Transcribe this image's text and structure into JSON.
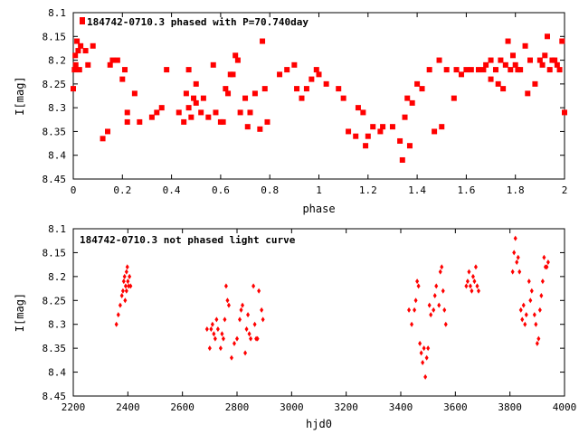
{
  "chart_data": [
    {
      "type": "scatter",
      "legend": "184742-0710.3 phased with P=70.740day",
      "xlabel": "phase",
      "ylabel": "I[mag]",
      "xlim": [
        0,
        2
      ],
      "ylim": [
        8.45,
        8.1
      ],
      "y_inverted": true,
      "xticks": [
        "0",
        "0.2",
        "0.4",
        "0.6",
        "0.8",
        "1",
        "1.2",
        "1.4",
        "1.6",
        "1.8",
        "2"
      ],
      "yticks": [
        "8.1",
        "8.15",
        "8.2",
        "8.25",
        "8.3",
        "8.35",
        "8.4",
        "8.45"
      ],
      "marker_color": "#ff0000",
      "series": [
        {
          "points": [
            [
              0.0,
              8.26
            ],
            [
              0.005,
              8.22
            ],
            [
              0.008,
              8.19
            ],
            [
              0.01,
              8.21
            ],
            [
              0.015,
              8.16
            ],
            [
              0.02,
              8.18
            ],
            [
              0.025,
              8.22
            ],
            [
              0.03,
              8.17
            ],
            [
              0.05,
              8.18
            ],
            [
              0.06,
              8.21
            ],
            [
              0.08,
              8.17
            ],
            [
              0.12,
              8.365
            ],
            [
              0.14,
              8.35
            ],
            [
              0.15,
              8.21
            ],
            [
              0.16,
              8.2
            ],
            [
              0.18,
              8.2
            ],
            [
              0.2,
              8.24
            ],
            [
              0.21,
              8.22
            ],
            [
              0.22,
              8.31
            ],
            [
              0.22,
              8.33
            ],
            [
              0.25,
              8.27
            ],
            [
              0.27,
              8.33
            ],
            [
              0.32,
              8.32
            ],
            [
              0.34,
              8.31
            ],
            [
              0.36,
              8.3
            ],
            [
              0.38,
              8.22
            ],
            [
              0.43,
              8.31
            ],
            [
              0.45,
              8.33
            ],
            [
              0.46,
              8.27
            ],
            [
              0.47,
              8.3
            ],
            [
              0.47,
              8.22
            ],
            [
              0.48,
              8.32
            ],
            [
              0.49,
              8.28
            ],
            [
              0.5,
              8.25
            ],
            [
              0.5,
              8.29
            ],
            [
              0.52,
              8.31
            ],
            [
              0.53,
              8.28
            ],
            [
              0.55,
              8.32
            ],
            [
              0.57,
              8.21
            ],
            [
              0.58,
              8.31
            ],
            [
              0.6,
              8.33
            ],
            [
              0.61,
              8.33
            ],
            [
              0.62,
              8.26
            ],
            [
              0.63,
              8.27
            ],
            [
              0.64,
              8.23
            ],
            [
              0.65,
              8.23
            ],
            [
              0.66,
              8.19
            ],
            [
              0.67,
              8.2
            ],
            [
              0.68,
              8.31
            ],
            [
              0.7,
              8.28
            ],
            [
              0.71,
              8.34
            ],
            [
              0.72,
              8.31
            ],
            [
              0.74,
              8.27
            ],
            [
              0.76,
              8.345
            ],
            [
              0.77,
              8.16
            ],
            [
              0.78,
              8.26
            ],
            [
              0.79,
              8.33
            ],
            [
              0.84,
              8.23
            ],
            [
              0.87,
              8.22
            ],
            [
              0.9,
              8.21
            ],
            [
              0.91,
              8.26
            ],
            [
              0.93,
              8.28
            ],
            [
              0.95,
              8.26
            ],
            [
              0.97,
              8.24
            ],
            [
              0.99,
              8.22
            ],
            [
              1.0,
              8.23
            ],
            [
              1.03,
              8.25
            ],
            [
              1.08,
              8.26
            ],
            [
              1.1,
              8.28
            ],
            [
              1.12,
              8.35
            ],
            [
              1.15,
              8.36
            ],
            [
              1.16,
              8.3
            ],
            [
              1.18,
              8.31
            ],
            [
              1.19,
              8.38
            ],
            [
              1.2,
              8.36
            ],
            [
              1.22,
              8.34
            ],
            [
              1.25,
              8.35
            ],
            [
              1.26,
              8.34
            ],
            [
              1.3,
              8.34
            ],
            [
              1.33,
              8.37
            ],
            [
              1.34,
              8.41
            ],
            [
              1.35,
              8.32
            ],
            [
              1.36,
              8.28
            ],
            [
              1.37,
              8.38
            ],
            [
              1.38,
              8.29
            ],
            [
              1.4,
              8.25
            ],
            [
              1.42,
              8.26
            ],
            [
              1.45,
              8.22
            ],
            [
              1.47,
              8.35
            ],
            [
              1.49,
              8.2
            ],
            [
              1.5,
              8.34
            ],
            [
              1.52,
              8.22
            ],
            [
              1.55,
              8.28
            ],
            [
              1.56,
              8.22
            ],
            [
              1.58,
              8.23
            ],
            [
              1.6,
              8.22
            ],
            [
              1.62,
              8.22
            ],
            [
              1.65,
              8.22
            ],
            [
              1.67,
              8.22
            ],
            [
              1.68,
              8.21
            ],
            [
              1.7,
              8.24
            ],
            [
              1.7,
              8.2
            ],
            [
              1.72,
              8.22
            ],
            [
              1.73,
              8.25
            ],
            [
              1.74,
              8.2
            ],
            [
              1.75,
              8.26
            ],
            [
              1.76,
              8.21
            ],
            [
              1.77,
              8.16
            ],
            [
              1.78,
              8.22
            ],
            [
              1.79,
              8.19
            ],
            [
              1.8,
              8.21
            ],
            [
              1.81,
              8.22
            ],
            [
              1.82,
              8.22
            ],
            [
              1.84,
              8.17
            ],
            [
              1.85,
              8.27
            ],
            [
              1.86,
              8.2
            ],
            [
              1.88,
              8.25
            ],
            [
              1.9,
              8.2
            ],
            [
              1.91,
              8.21
            ],
            [
              1.92,
              8.19
            ],
            [
              1.93,
              8.15
            ],
            [
              1.94,
              8.22
            ],
            [
              1.95,
              8.2
            ],
            [
              1.96,
              8.2
            ],
            [
              1.97,
              8.21
            ],
            [
              1.98,
              8.22
            ],
            [
              1.99,
              8.16
            ],
            [
              2.0,
              8.31
            ]
          ]
        }
      ]
    },
    {
      "type": "scatter",
      "legend": "184742-0710.3 not phased light curve",
      "xlabel": "hjd0",
      "ylabel": "I[mag]",
      "xlim": [
        2200,
        4000
      ],
      "ylim": [
        8.45,
        8.1
      ],
      "y_inverted": true,
      "xticks": [
        "2200",
        "2400",
        "2600",
        "2800",
        "3000",
        "3200",
        "3400",
        "3600",
        "3800",
        "4000"
      ],
      "yticks": [
        "8.1",
        "8.15",
        "8.2",
        "8.25",
        "8.3",
        "8.35",
        "8.4",
        "8.45"
      ],
      "marker_color": "#ff0000",
      "series": [
        {
          "points": [
            [
              2358,
              8.3
            ],
            [
              2365,
              8.28
            ],
            [
              2372,
              8.26
            ],
            [
              2378,
              8.24
            ],
            [
              2382,
              8.23
            ],
            [
              2385,
              8.21
            ],
            [
              2388,
              8.2
            ],
            [
              2392,
              8.22
            ],
            [
              2395,
              8.19
            ],
            [
              2398,
              8.18
            ],
            [
              2400,
              8.21
            ],
            [
              2403,
              8.22
            ],
            [
              2406,
              8.2
            ],
            [
              2410,
              8.22
            ],
            [
              2390,
              8.25
            ],
            [
              2395,
              8.23
            ],
            [
              2690,
              8.31
            ],
            [
              2700,
              8.35
            ],
            [
              2705,
              8.31
            ],
            [
              2710,
              8.3
            ],
            [
              2715,
              8.32
            ],
            [
              2720,
              8.33
            ],
            [
              2725,
              8.29
            ],
            [
              2730,
              8.31
            ],
            [
              2740,
              8.35
            ],
            [
              2745,
              8.32
            ],
            [
              2750,
              8.33
            ],
            [
              2755,
              8.29
            ],
            [
              2760,
              8.22
            ],
            [
              2765,
              8.25
            ],
            [
              2770,
              8.26
            ],
            [
              2780,
              8.37
            ],
            [
              2790,
              8.34
            ],
            [
              2800,
              8.33
            ],
            [
              2810,
              8.29
            ],
            [
              2815,
              8.27
            ],
            [
              2820,
              8.26
            ],
            [
              2830,
              8.36
            ],
            [
              2835,
              8.31
            ],
            [
              2840,
              8.28
            ],
            [
              2845,
              8.32
            ],
            [
              2850,
              8.33
            ],
            [
              2860,
              8.22
            ],
            [
              2865,
              8.3
            ],
            [
              2870,
              8.33
            ],
            [
              2875,
              8.33
            ],
            [
              2880,
              8.23
            ],
            [
              2890,
              8.27
            ],
            [
              2895,
              8.29
            ],
            [
              3430,
              8.27
            ],
            [
              3440,
              8.3
            ],
            [
              3450,
              8.27
            ],
            [
              3455,
              8.25
            ],
            [
              3460,
              8.21
            ],
            [
              3465,
              8.22
            ],
            [
              3470,
              8.34
            ],
            [
              3475,
              8.36
            ],
            [
              3480,
              8.38
            ],
            [
              3485,
              8.35
            ],
            [
              3490,
              8.41
            ],
            [
              3495,
              8.37
            ],
            [
              3500,
              8.35
            ],
            [
              3505,
              8.26
            ],
            [
              3510,
              8.28
            ],
            [
              3520,
              8.27
            ],
            [
              3525,
              8.24
            ],
            [
              3530,
              8.22
            ],
            [
              3540,
              8.26
            ],
            [
              3545,
              8.19
            ],
            [
              3550,
              8.18
            ],
            [
              3555,
              8.23
            ],
            [
              3560,
              8.27
            ],
            [
              3565,
              8.3
            ],
            [
              3640,
              8.22
            ],
            [
              3645,
              8.21
            ],
            [
              3650,
              8.19
            ],
            [
              3655,
              8.22
            ],
            [
              3660,
              8.23
            ],
            [
              3665,
              8.2
            ],
            [
              3670,
              8.21
            ],
            [
              3675,
              8.18
            ],
            [
              3680,
              8.22
            ],
            [
              3685,
              8.23
            ],
            [
              3810,
              8.19
            ],
            [
              3815,
              8.15
            ],
            [
              3820,
              8.12
            ],
            [
              3825,
              8.17
            ],
            [
              3830,
              8.16
            ],
            [
              3835,
              8.19
            ],
            [
              3840,
              8.27
            ],
            [
              3845,
              8.29
            ],
            [
              3850,
              8.26
            ],
            [
              3855,
              8.3
            ],
            [
              3860,
              8.28
            ],
            [
              3870,
              8.21
            ],
            [
              3875,
              8.25
            ],
            [
              3880,
              8.23
            ],
            [
              3890,
              8.28
            ],
            [
              3895,
              8.3
            ],
            [
              3900,
              8.34
            ],
            [
              3905,
              8.33
            ],
            [
              3910,
              8.27
            ],
            [
              3915,
              8.24
            ],
            [
              3920,
              8.21
            ],
            [
              3925,
              8.16
            ],
            [
              3930,
              8.18
            ],
            [
              3935,
              8.18
            ],
            [
              3940,
              8.17
            ]
          ]
        }
      ]
    }
  ]
}
